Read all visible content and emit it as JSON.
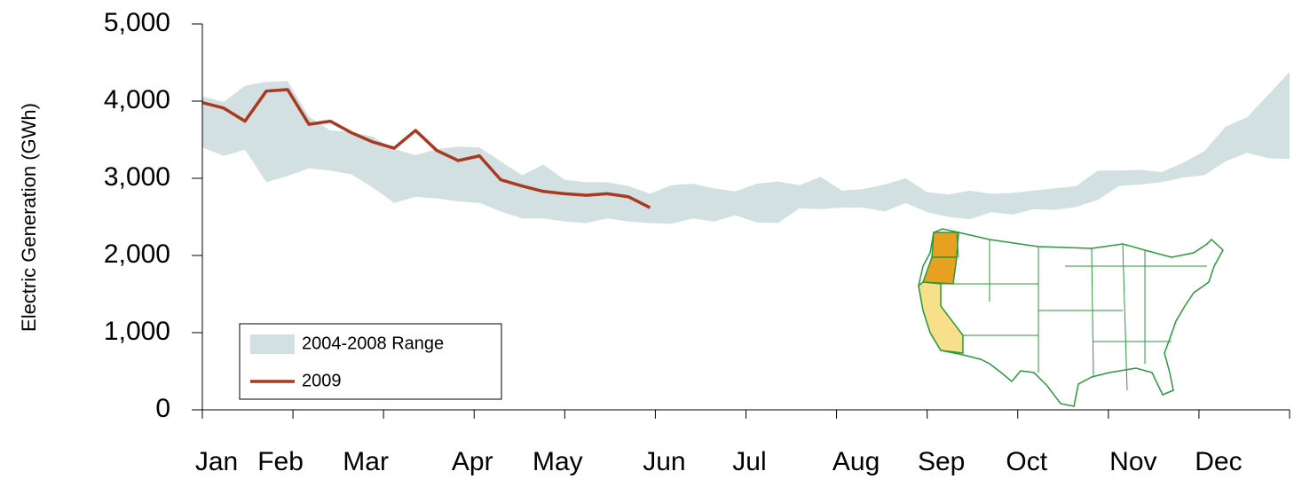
{
  "chart_data": {
    "type": "line",
    "y_label": "Electric Generation (GWh)",
    "categories": [
      "Jan",
      null,
      null,
      "Feb",
      null,
      null,
      null,
      "Mar",
      null,
      null,
      null,
      null,
      "Apr",
      null,
      null,
      null,
      "May",
      null,
      null,
      null,
      null,
      "Jun",
      null,
      null,
      null,
      "Jul",
      null,
      null,
      null,
      null,
      "Aug",
      null,
      null,
      null,
      "Sep",
      null,
      null,
      null,
      "Oct",
      null,
      null,
      null,
      null,
      "Nov",
      null,
      null,
      null,
      "Dec",
      null,
      null,
      null,
      null
    ],
    "series": [
      {
        "name": "2004-2008 Range",
        "type": "range",
        "color": "#d3e0e2",
        "high": [
          4060,
          3990,
          4200,
          4250,
          4260,
          3800,
          3620,
          3600,
          3540,
          3380,
          3300,
          3380,
          3410,
          3400,
          3220,
          3040,
          3180,
          2980,
          2950,
          2950,
          2900,
          2800,
          2910,
          2930,
          2870,
          2830,
          2930,
          2960,
          2910,
          3020,
          2840,
          2860,
          2920,
          3000,
          2820,
          2790,
          2840,
          2800,
          2810,
          2840,
          2870,
          2900,
          3100,
          3100,
          3110,
          3080,
          3200,
          3350,
          3670,
          3790,
          4080,
          4380
        ],
        "low": [
          3400,
          3290,
          3370,
          2950,
          3030,
          3130,
          3100,
          3050,
          2880,
          2680,
          2760,
          2740,
          2700,
          2680,
          2570,
          2480,
          2480,
          2440,
          2420,
          2480,
          2440,
          2420,
          2410,
          2480,
          2440,
          2520,
          2430,
          2420,
          2610,
          2600,
          2620,
          2620,
          2570,
          2680,
          2560,
          2500,
          2470,
          2560,
          2530,
          2600,
          2590,
          2630,
          2720,
          2900,
          2920,
          2950,
          3010,
          3040,
          3220,
          3330,
          3260,
          3250
        ]
      },
      {
        "name": "2009",
        "type": "line",
        "color": "#a83a22",
        "values": [
          3980,
          3910,
          3740,
          4130,
          4150,
          3700,
          3740,
          3590,
          3470,
          3390,
          3620,
          3360,
          3230,
          3290,
          2980,
          2900,
          2830,
          2800,
          2780,
          2800,
          2760,
          2620,
          null,
          null,
          null,
          null,
          null,
          null,
          null,
          null,
          null,
          null,
          null,
          null,
          null,
          null,
          null,
          null,
          null,
          null,
          null,
          null,
          null,
          null,
          null,
          null,
          null,
          null,
          null,
          null,
          null,
          null
        ]
      }
    ],
    "ylim": [
      0,
      5000
    ],
    "yticks": [
      0,
      {
        "value": 1000,
        "label": "1,000"
      },
      {
        "value": 2000,
        "label": "2,000"
      },
      {
        "value": 3000,
        "label": "3,000"
      },
      {
        "value": 4000,
        "label": "4,000"
      },
      {
        "value": 5000,
        "label": "5,000"
      }
    ],
    "legend": "bottom-left"
  }
}
